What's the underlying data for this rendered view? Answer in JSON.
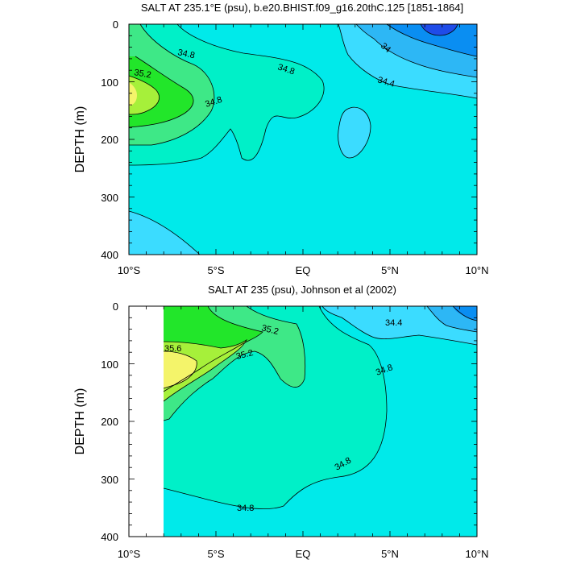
{
  "colors": {
    "s33": "#1f4ce8",
    "s335": "#0a8ef2",
    "s338": "#2db7f5",
    "s34": "#3bdcff",
    "s344": "#00eaea",
    "s348": "#00f0c8",
    "s352": "#3ee887",
    "s355": "#22e62a",
    "s358": "#a6f03a",
    "s36": "#f4f46a"
  },
  "chart_data": [
    {
      "type": "contour",
      "title": "SALT AT 235.1°E (psu), b.e20.BHIST.f09_g16.20thC.125 [1851-1864]",
      "ylabel": "DEPTH (m)",
      "xlabel": "",
      "xlim": [
        -10,
        10
      ],
      "ylim": [
        400,
        0
      ],
      "x_ticks": [
        "10°S",
        "5°S",
        "EQ",
        "5°N",
        "10°N"
      ],
      "y_ticks": [
        "0",
        "100",
        "200",
        "300",
        "400"
      ],
      "contour_labels": [
        "34.8",
        "34.8",
        "35.2",
        "34.8",
        "34",
        "34.4"
      ],
      "grid": false
    },
    {
      "type": "contour",
      "title": "SALT AT 235 (psu), Johnson et al (2002)",
      "ylabel": "DEPTH (m)",
      "xlabel": "",
      "xlim": [
        -10,
        10
      ],
      "ylim": [
        400,
        0
      ],
      "data_xrange": [
        -8,
        10
      ],
      "x_ticks": [
        "10°S",
        "5°S",
        "EQ",
        "5°N",
        "10°N"
      ],
      "y_ticks": [
        "0",
        "100",
        "200",
        "300",
        "400"
      ],
      "contour_labels": [
        "35.2",
        "35.6",
        "35.2",
        "34.4",
        "34.8",
        "34.8",
        "34.8"
      ],
      "grid": false
    }
  ]
}
